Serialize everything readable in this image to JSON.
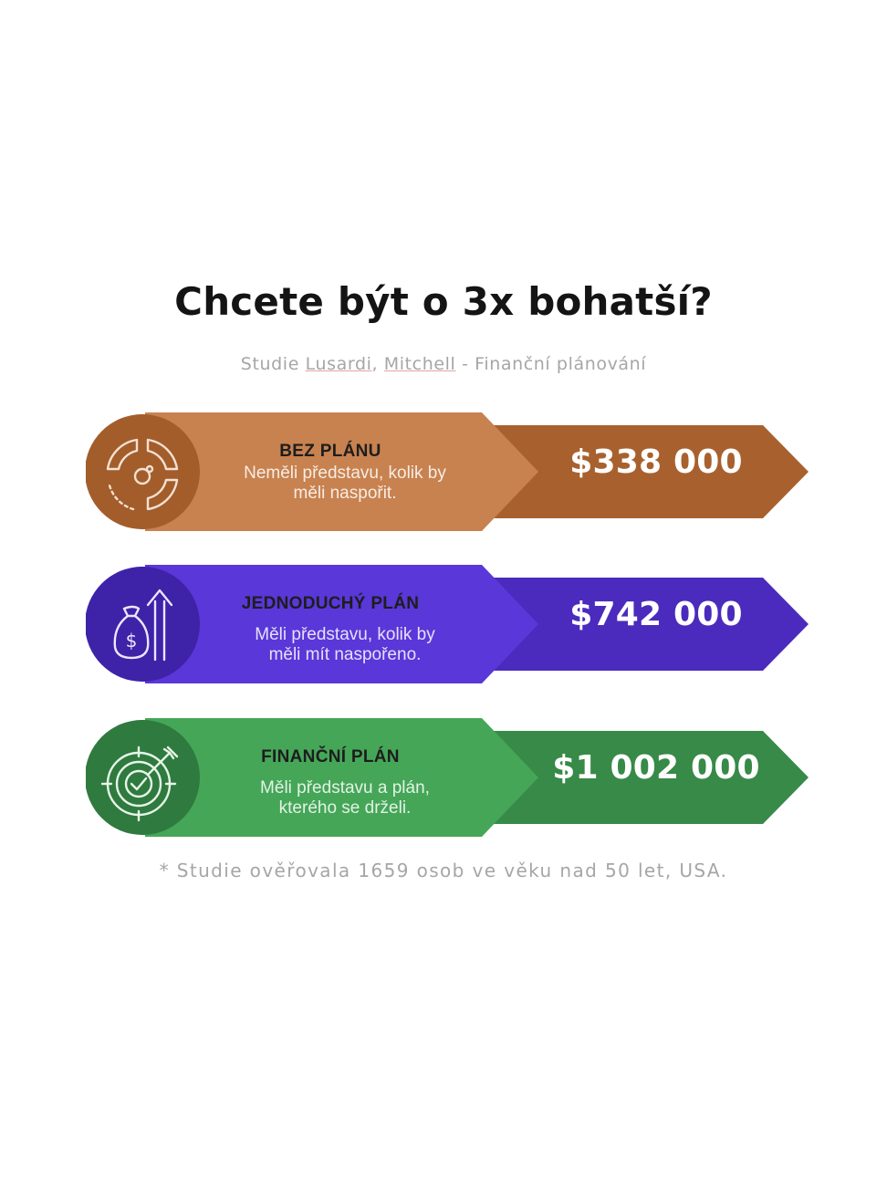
{
  "header": {
    "title": "Chcete být o 3x bohatší?",
    "subtitle_prefix": "Studie ",
    "subtitle_author1": "Lusardi",
    "subtitle_sep": ", ",
    "subtitle_author2": "Mitchell",
    "subtitle_suffix": " - Finanční plánování"
  },
  "plans": [
    {
      "title": "BEZ PLÁNU",
      "desc_line1": "Neměli představu, kolik by",
      "desc_line2": "měli naspořit.",
      "amount": "$338 000",
      "icon": "pie-chart-icon",
      "colors": {
        "light": "#c8824f",
        "dark": "#a8612e",
        "circle": "#a35d2b"
      }
    },
    {
      "title": "JEDNODUCHÝ PLÁN",
      "desc_line1": "Měli představu, kolik by",
      "desc_line2": "měli mít naspořeno.",
      "amount": "$742 000",
      "icon": "money-bag-arrow-icon",
      "colors": {
        "light": "#5a37d8",
        "dark": "#4a2bbd",
        "circle": "#3e22a8"
      }
    },
    {
      "title": "FINANČNÍ PLÁN",
      "desc_line1": "Měli představu a plán,",
      "desc_line2": "kterého se drželi.",
      "amount": "$1 002 000",
      "icon": "target-arrow-icon",
      "colors": {
        "light": "#45a658",
        "dark": "#378a47",
        "circle": "#2f7a3e"
      }
    }
  ],
  "footnote": "* Studie ověřovala 1659 osob ve věku nad 50 let, USA."
}
